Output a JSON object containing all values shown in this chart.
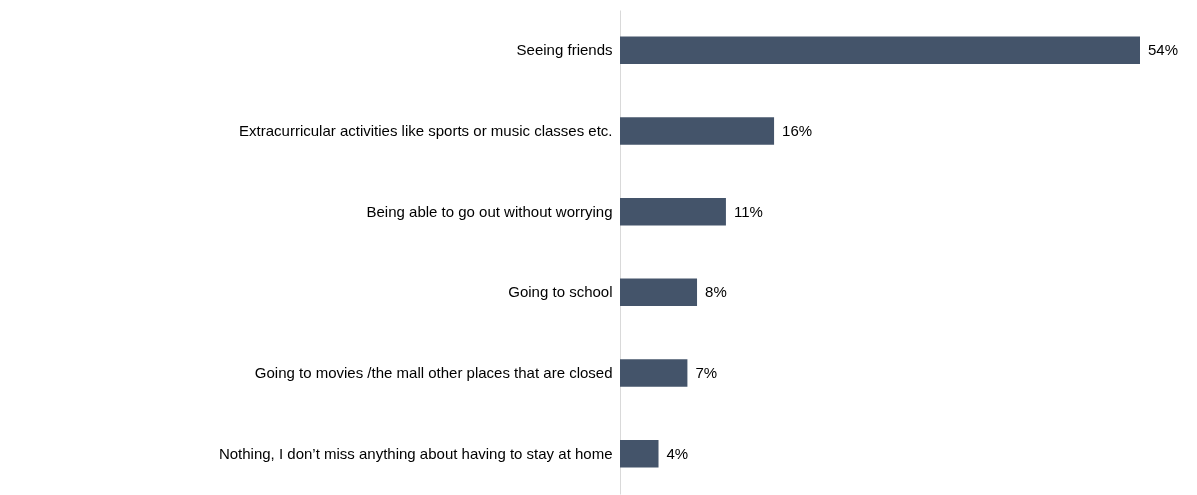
{
  "chart_data": {
    "type": "bar",
    "orientation": "horizontal",
    "categories": [
      "Seeing friends",
      "Extracurricular activities like sports or music classes etc.",
      "Being able to go out without worrying",
      "Going to school",
      "Going to movies /the mall other places that are closed",
      "Nothing, I don’t miss anything about having to stay at home"
    ],
    "values": [
      54,
      16,
      11,
      8,
      7,
      4
    ],
    "value_labels": [
      "54%",
      "16%",
      "11%",
      "8%",
      "7%",
      "4%"
    ],
    "color": "#44546a"
  }
}
